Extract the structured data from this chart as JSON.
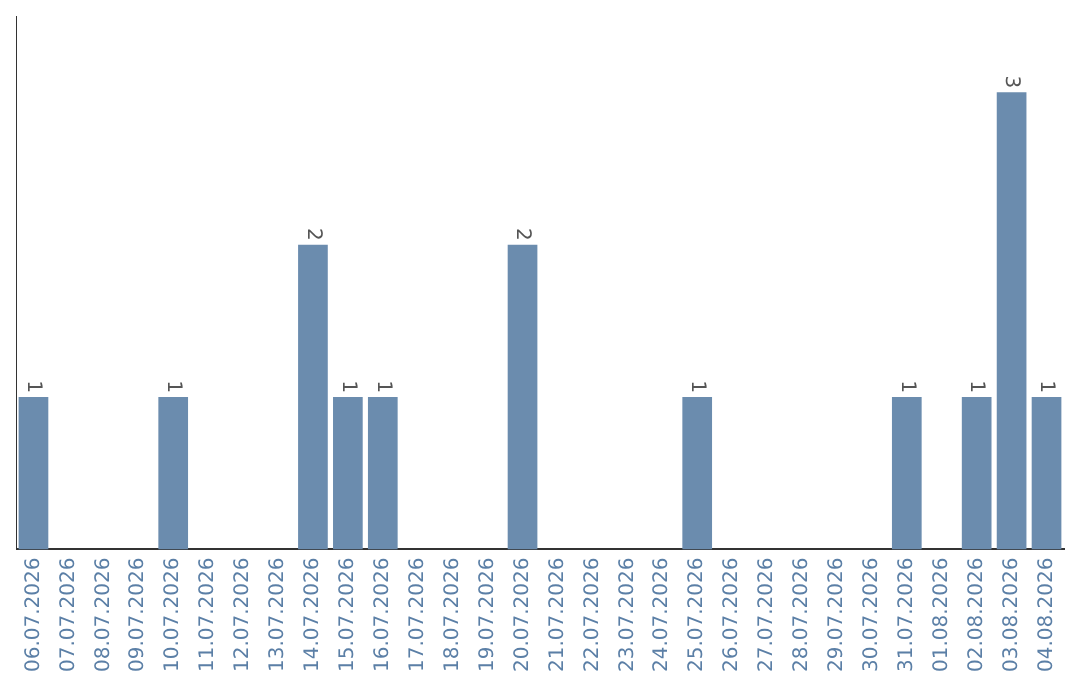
{
  "chart_data": {
    "type": "bar",
    "categories": [
      "06.07.2026",
      "07.07.2026",
      "08.07.2026",
      "09.07.2026",
      "10.07.2026",
      "11.07.2026",
      "12.07.2026",
      "13.07.2026",
      "14.07.2026",
      "15.07.2026",
      "16.07.2026",
      "17.07.2026",
      "18.07.2026",
      "19.07.2026",
      "20.07.2026",
      "21.07.2026",
      "22.07.2026",
      "23.07.2026",
      "24.07.2026",
      "25.07.2026",
      "26.07.2026",
      "27.07.2026",
      "28.07.2026",
      "29.07.2026",
      "30.07.2026",
      "31.07.2026",
      "01.08.2026",
      "02.08.2026",
      "03.08.2026",
      "04.08.2026"
    ],
    "values": [
      1,
      null,
      null,
      null,
      1,
      null,
      null,
      null,
      2,
      1,
      1,
      null,
      null,
      null,
      2,
      null,
      null,
      null,
      null,
      1,
      null,
      null,
      null,
      null,
      null,
      1,
      null,
      1,
      3,
      1
    ],
    "color": "#6b8cae",
    "data_labels": true
  }
}
